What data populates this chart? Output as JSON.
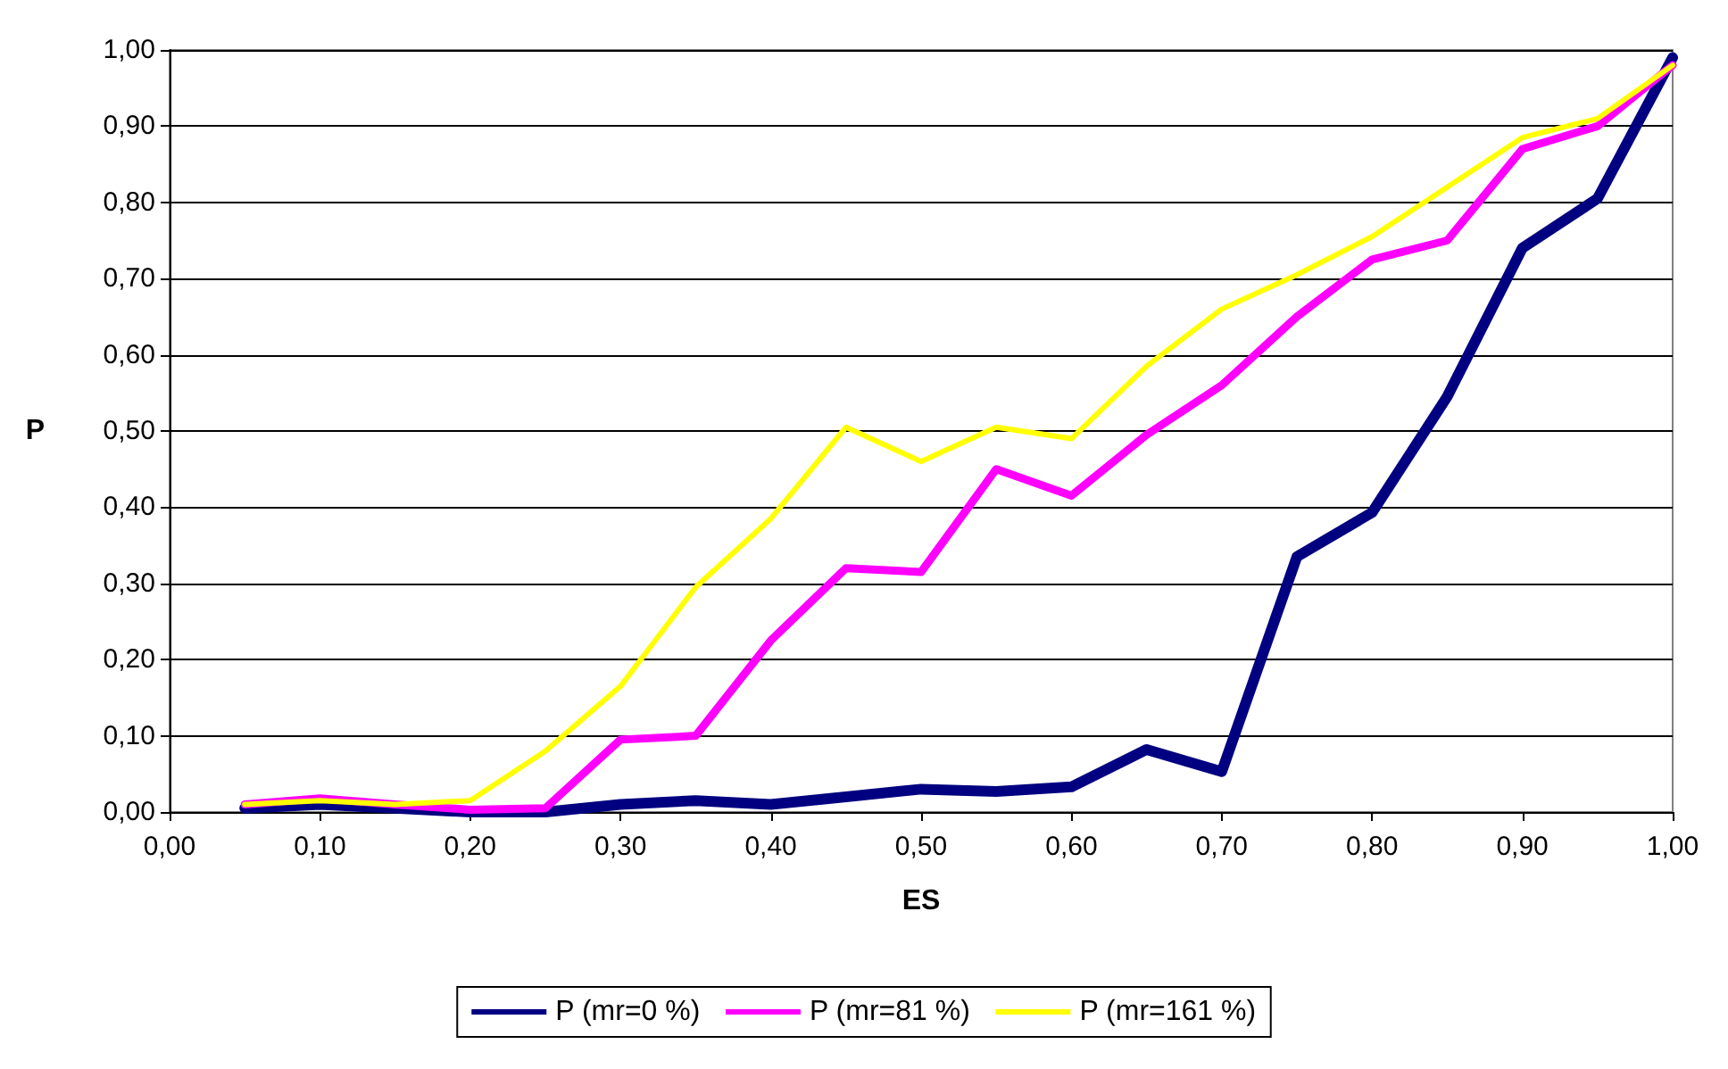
{
  "chart_data": {
    "type": "line",
    "xlabel": "ES",
    "ylabel": "P",
    "x": [
      0.05,
      0.1,
      0.15,
      0.2,
      0.25,
      0.3,
      0.35,
      0.4,
      0.45,
      0.5,
      0.55,
      0.6,
      0.65,
      0.7,
      0.75,
      0.8,
      0.85,
      0.9,
      0.95,
      1.0
    ],
    "series": [
      {
        "name": "P (mr=0 %)",
        "color": "#000080",
        "values": [
          0.005,
          0.01,
          0.005,
          0.0,
          0.0,
          0.01,
          0.015,
          0.01,
          0.02,
          0.03,
          0.027,
          0.033,
          0.082,
          0.053,
          0.335,
          0.393,
          0.545,
          0.74,
          0.805,
          0.99
        ]
      },
      {
        "name": "P (mr=81 %)",
        "color": "#ff00ff",
        "values": [
          0.01,
          0.018,
          0.01,
          0.003,
          0.005,
          0.095,
          0.1,
          0.225,
          0.32,
          0.315,
          0.45,
          0.415,
          0.495,
          0.56,
          0.65,
          0.725,
          0.75,
          0.87,
          0.9,
          0.98
        ]
      },
      {
        "name": "P (mr=161 %)",
        "color": "#ffff00",
        "values": [
          0.01,
          0.015,
          0.01,
          0.015,
          0.08,
          0.165,
          0.295,
          0.385,
          0.505,
          0.46,
          0.505,
          0.49,
          0.585,
          0.66,
          0.705,
          0.755,
          0.82,
          0.885,
          0.91,
          0.98
        ]
      }
    ],
    "xlim": [
      0,
      1
    ],
    "xticks": [
      {
        "value": 0,
        "label": "0,00"
      },
      {
        "value": 0.1,
        "label": "0,10"
      },
      {
        "value": 0.2,
        "label": "0,20"
      },
      {
        "value": 0.3,
        "label": "0,30"
      },
      {
        "value": 0.4,
        "label": "0,40"
      },
      {
        "value": 0.5,
        "label": "0,50"
      },
      {
        "value": 0.6,
        "label": "0,60"
      },
      {
        "value": 0.7,
        "label": "0,70"
      },
      {
        "value": 0.8,
        "label": "0,80"
      },
      {
        "value": 0.9,
        "label": "0,90"
      },
      {
        "value": 1,
        "label": "1,00"
      }
    ],
    "ylim": [
      0,
      1
    ],
    "yticks": [
      {
        "value": 0,
        "label": "0,00"
      },
      {
        "value": 0.1,
        "label": "0,10"
      },
      {
        "value": 0.2,
        "label": "0,20"
      },
      {
        "value": 0.3,
        "label": "0,30"
      },
      {
        "value": 0.4,
        "label": "0,40"
      },
      {
        "value": 0.5,
        "label": "0,50"
      },
      {
        "value": 0.6,
        "label": "0,60"
      },
      {
        "value": 0.7,
        "label": "0,70"
      },
      {
        "value": 0.8,
        "label": "0,80"
      },
      {
        "value": 0.9,
        "label": "0,90"
      },
      {
        "value": 1,
        "label": "1,00"
      }
    ],
    "grid": "y",
    "legend": "bottom",
    "marker": "none",
    "line_style": "solid"
  }
}
